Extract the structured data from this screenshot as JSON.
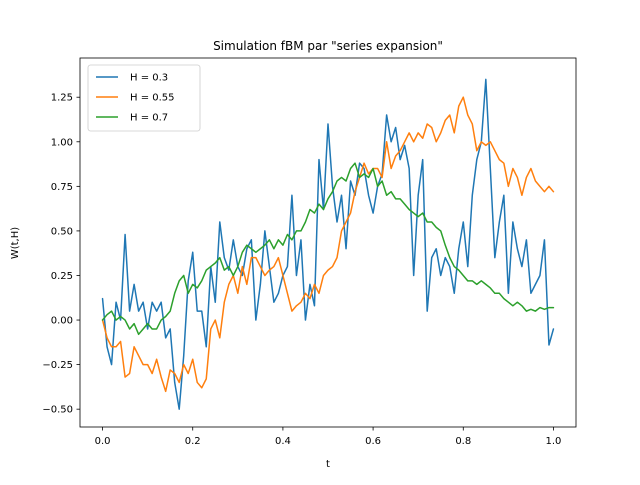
{
  "chart_data": {
    "type": "line",
    "title": "Simulation fBM par \"series expansion\"",
    "xlabel": "t",
    "ylabel": "W(t,H)",
    "xlim": [
      -0.05,
      1.05
    ],
    "ylim": [
      -0.6,
      1.47
    ],
    "xticks": [
      0.0,
      0.2,
      0.4,
      0.6,
      0.8,
      1.0
    ],
    "xtick_labels": [
      "0.0",
      "0.2",
      "0.4",
      "0.6",
      "0.8",
      "1.0"
    ],
    "yticks": [
      -0.5,
      -0.25,
      0.0,
      0.25,
      0.5,
      0.75,
      1.0,
      1.25
    ],
    "ytick_labels": [
      "−0.50",
      "−0.25",
      "0.00",
      "0.25",
      "0.50",
      "0.75",
      "1.00",
      "1.25"
    ],
    "grid": false,
    "legend_position": "top-left",
    "series": [
      {
        "name": "H = 0.3",
        "color": "#1f77b4",
        "x": [
          0.0,
          0.01,
          0.02,
          0.03,
          0.04,
          0.05,
          0.06,
          0.07,
          0.08,
          0.09,
          0.1,
          0.11,
          0.12,
          0.13,
          0.14,
          0.15,
          0.16,
          0.17,
          0.18,
          0.19,
          0.2,
          0.21,
          0.22,
          0.23,
          0.24,
          0.25,
          0.26,
          0.27,
          0.28,
          0.29,
          0.3,
          0.31,
          0.32,
          0.33,
          0.34,
          0.35,
          0.36,
          0.37,
          0.38,
          0.39,
          0.4,
          0.41,
          0.42,
          0.43,
          0.44,
          0.45,
          0.46,
          0.47,
          0.48,
          0.49,
          0.5,
          0.51,
          0.52,
          0.53,
          0.54,
          0.55,
          0.56,
          0.57,
          0.58,
          0.59,
          0.6,
          0.61,
          0.62,
          0.63,
          0.64,
          0.65,
          0.66,
          0.67,
          0.68,
          0.69,
          0.7,
          0.71,
          0.72,
          0.73,
          0.74,
          0.75,
          0.76,
          0.77,
          0.78,
          0.79,
          0.8,
          0.81,
          0.82,
          0.83,
          0.84,
          0.85,
          0.86,
          0.87,
          0.88,
          0.89,
          0.9,
          0.91,
          0.92,
          0.93,
          0.94,
          0.95,
          0.96,
          0.97,
          0.98,
          0.99,
          1.0
        ],
        "values": [
          0.12,
          -0.15,
          -0.25,
          0.1,
          0.0,
          0.48,
          0.05,
          0.2,
          0.05,
          0.1,
          -0.05,
          0.1,
          0.05,
          0.1,
          -0.1,
          -0.05,
          -0.35,
          -0.5,
          -0.2,
          0.22,
          0.38,
          0.05,
          0.05,
          -0.15,
          0.3,
          0.1,
          0.55,
          0.35,
          0.28,
          0.45,
          0.3,
          0.25,
          0.4,
          0.45,
          0.0,
          0.2,
          0.5,
          0.3,
          0.1,
          0.15,
          0.25,
          0.3,
          0.7,
          0.25,
          0.45,
          0.0,
          0.2,
          0.08,
          0.9,
          0.62,
          1.1,
          0.75,
          0.55,
          0.7,
          0.4,
          0.78,
          0.7,
          0.88,
          0.85,
          0.7,
          0.6,
          0.75,
          0.82,
          1.15,
          1.0,
          1.08,
          0.9,
          0.98,
          0.85,
          0.25,
          0.7,
          0.9,
          0.05,
          0.35,
          0.4,
          0.25,
          0.35,
          0.3,
          0.15,
          0.4,
          0.55,
          0.3,
          0.7,
          0.9,
          1.0,
          1.35,
          0.85,
          0.35,
          0.55,
          0.7,
          0.15,
          0.55,
          0.4,
          0.3,
          0.45,
          0.15,
          0.2,
          0.25,
          0.45,
          -0.14,
          -0.05
        ]
      },
      {
        "name": "H = 0.55",
        "color": "#ff7f0e",
        "x": [
          0.0,
          0.01,
          0.02,
          0.03,
          0.04,
          0.05,
          0.06,
          0.07,
          0.08,
          0.09,
          0.1,
          0.11,
          0.12,
          0.13,
          0.14,
          0.15,
          0.16,
          0.17,
          0.18,
          0.19,
          0.2,
          0.21,
          0.22,
          0.23,
          0.24,
          0.25,
          0.26,
          0.27,
          0.28,
          0.29,
          0.3,
          0.31,
          0.32,
          0.33,
          0.34,
          0.35,
          0.36,
          0.37,
          0.38,
          0.39,
          0.4,
          0.41,
          0.42,
          0.43,
          0.44,
          0.45,
          0.46,
          0.47,
          0.48,
          0.49,
          0.5,
          0.51,
          0.52,
          0.53,
          0.54,
          0.55,
          0.56,
          0.57,
          0.58,
          0.59,
          0.6,
          0.61,
          0.62,
          0.63,
          0.64,
          0.65,
          0.66,
          0.67,
          0.68,
          0.69,
          0.7,
          0.71,
          0.72,
          0.73,
          0.74,
          0.75,
          0.76,
          0.77,
          0.78,
          0.79,
          0.8,
          0.81,
          0.82,
          0.83,
          0.84,
          0.85,
          0.86,
          0.87,
          0.88,
          0.89,
          0.9,
          0.91,
          0.92,
          0.93,
          0.94,
          0.95,
          0.96,
          0.97,
          0.98,
          0.99,
          1.0
        ],
        "values": [
          0.0,
          -0.1,
          -0.15,
          -0.15,
          -0.12,
          -0.32,
          -0.3,
          -0.15,
          -0.2,
          -0.25,
          -0.25,
          -0.3,
          -0.22,
          -0.32,
          -0.4,
          -0.28,
          -0.3,
          -0.35,
          -0.25,
          -0.3,
          -0.22,
          -0.35,
          -0.38,
          -0.33,
          -0.05,
          0.0,
          -0.1,
          0.1,
          0.2,
          0.25,
          0.15,
          0.3,
          0.2,
          0.35,
          0.35,
          0.3,
          0.25,
          0.28,
          0.3,
          0.35,
          0.25,
          0.15,
          0.05,
          0.08,
          0.1,
          0.15,
          0.12,
          0.2,
          0.15,
          0.25,
          0.28,
          0.3,
          0.35,
          0.5,
          0.55,
          0.6,
          0.72,
          0.8,
          0.88,
          0.82,
          0.85,
          0.85,
          0.8,
          1.0,
          0.85,
          0.92,
          0.95,
          1.0,
          1.05,
          1.0,
          1.05,
          1.02,
          1.1,
          1.08,
          1.0,
          1.05,
          1.12,
          1.15,
          1.05,
          1.2,
          1.25,
          1.15,
          1.1,
          0.95,
          1.0,
          0.98,
          1.0,
          0.95,
          0.9,
          0.88,
          0.75,
          0.85,
          0.8,
          0.7,
          0.8,
          0.85,
          0.78,
          0.75,
          0.72,
          0.75,
          0.72
        ]
      },
      {
        "name": "H = 0.7",
        "color": "#2ca02c",
        "x": [
          0.0,
          0.01,
          0.02,
          0.03,
          0.04,
          0.05,
          0.06,
          0.07,
          0.08,
          0.09,
          0.1,
          0.11,
          0.12,
          0.13,
          0.14,
          0.15,
          0.16,
          0.17,
          0.18,
          0.19,
          0.2,
          0.21,
          0.22,
          0.23,
          0.24,
          0.25,
          0.26,
          0.27,
          0.28,
          0.29,
          0.3,
          0.31,
          0.32,
          0.33,
          0.34,
          0.35,
          0.36,
          0.37,
          0.38,
          0.39,
          0.4,
          0.41,
          0.42,
          0.43,
          0.44,
          0.45,
          0.46,
          0.47,
          0.48,
          0.49,
          0.5,
          0.51,
          0.52,
          0.53,
          0.54,
          0.55,
          0.56,
          0.57,
          0.58,
          0.59,
          0.6,
          0.61,
          0.62,
          0.63,
          0.64,
          0.65,
          0.66,
          0.67,
          0.68,
          0.69,
          0.7,
          0.71,
          0.72,
          0.73,
          0.74,
          0.75,
          0.76,
          0.77,
          0.78,
          0.79,
          0.8,
          0.81,
          0.82,
          0.83,
          0.84,
          0.85,
          0.86,
          0.87,
          0.88,
          0.89,
          0.9,
          0.91,
          0.92,
          0.93,
          0.94,
          0.95,
          0.96,
          0.97,
          0.98,
          0.99,
          1.0
        ],
        "values": [
          0.0,
          0.03,
          0.05,
          0.0,
          0.02,
          0.0,
          -0.05,
          -0.02,
          -0.08,
          -0.05,
          -0.02,
          -0.05,
          -0.05,
          0.0,
          0.02,
          0.05,
          0.15,
          0.22,
          0.25,
          0.15,
          0.2,
          0.18,
          0.22,
          0.28,
          0.3,
          0.32,
          0.35,
          0.28,
          0.3,
          0.25,
          0.3,
          0.38,
          0.42,
          0.4,
          0.38,
          0.4,
          0.42,
          0.45,
          0.4,
          0.45,
          0.42,
          0.48,
          0.45,
          0.5,
          0.5,
          0.55,
          0.62,
          0.6,
          0.65,
          0.62,
          0.68,
          0.72,
          0.78,
          0.8,
          0.78,
          0.85,
          0.88,
          0.8,
          0.82,
          0.8,
          0.85,
          0.75,
          0.78,
          0.7,
          0.72,
          0.68,
          0.68,
          0.65,
          0.62,
          0.6,
          0.58,
          0.6,
          0.55,
          0.55,
          0.52,
          0.5,
          0.42,
          0.35,
          0.3,
          0.28,
          0.25,
          0.22,
          0.22,
          0.2,
          0.22,
          0.2,
          0.18,
          0.15,
          0.15,
          0.12,
          0.1,
          0.08,
          0.1,
          0.08,
          0.05,
          0.06,
          0.05,
          0.07,
          0.06,
          0.07,
          0.07
        ]
      }
    ]
  }
}
